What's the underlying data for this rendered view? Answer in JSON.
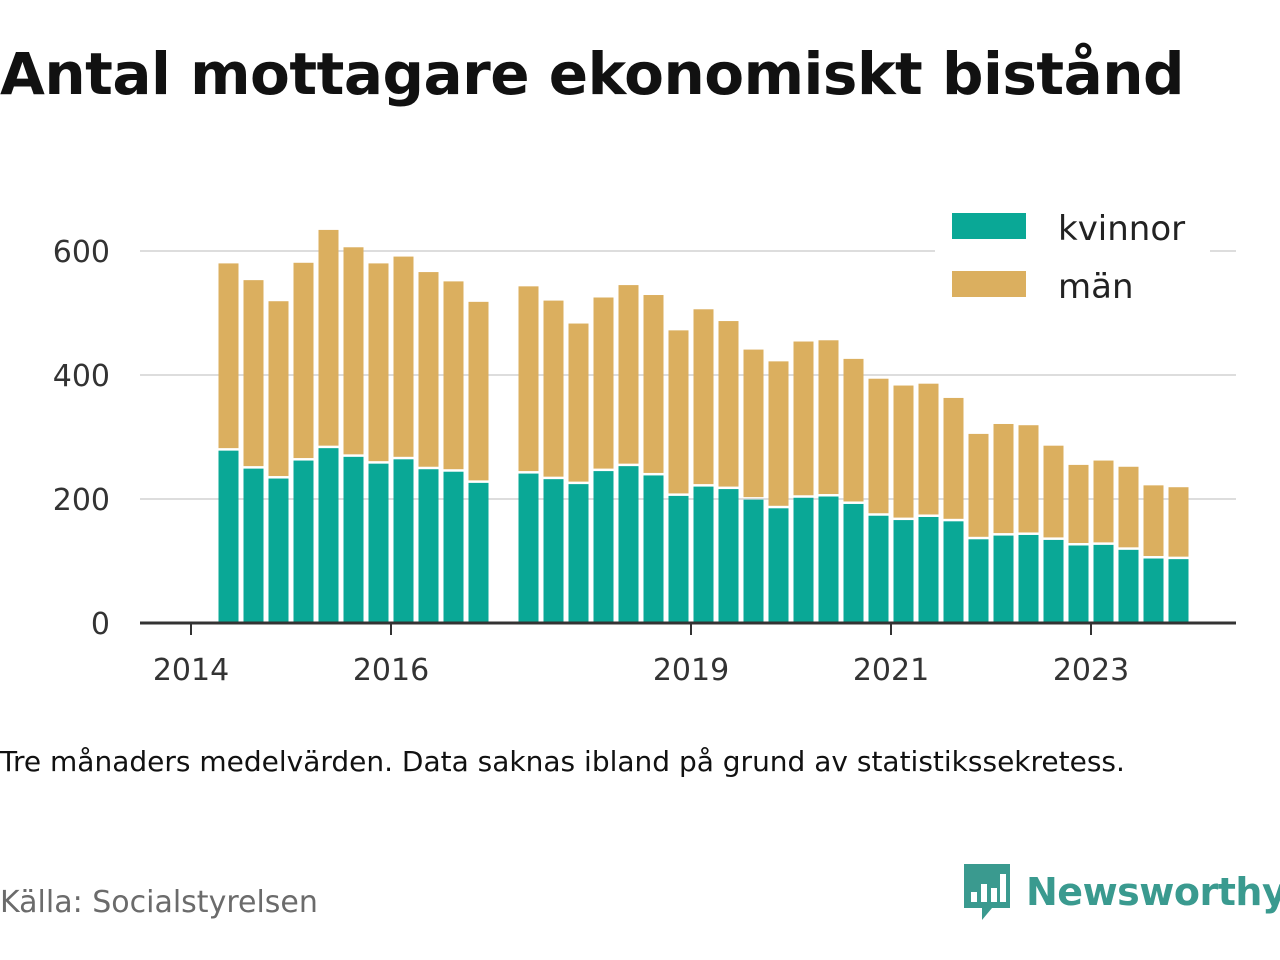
{
  "title": "Antal mottagare ekonomiskt bistånd",
  "note": "Tre månaders medelvärden. Data saknas ibland på grund av statistikssekretess.",
  "source": "Källa: Socialstyrelsen",
  "brand": {
    "name": "Newsworthy",
    "icon": "newsworthy-logo-icon",
    "color": "#3a9a8f"
  },
  "colors": {
    "kvinnor": "#0aa896",
    "man": "#dbaf5f",
    "grid": "#dddddd",
    "axis": "#333333"
  },
  "chart_data": {
    "type": "bar",
    "stacked": true,
    "x_unit": "quarter",
    "ylim": [
      0,
      650
    ],
    "yticks": [
      0,
      200,
      400,
      600
    ],
    "xticks": [
      "2014",
      "2016",
      "2019",
      "2021",
      "2023"
    ],
    "grid": "horizontal",
    "legend_position": "top-right",
    "categories": [
      "2014-Q2",
      "2014-Q3",
      "2014-Q4",
      "2015-Q1",
      "2015-Q2",
      "2015-Q3",
      "2015-Q4",
      "2016-Q1",
      "2016-Q2",
      "2016-Q3",
      "2016-Q4",
      "2017-Q1",
      "2017-Q2",
      "2017-Q3",
      "2017-Q4",
      "2018-Q1",
      "2018-Q2",
      "2018-Q3",
      "2018-Q4",
      "2019-Q1",
      "2019-Q2",
      "2019-Q3",
      "2019-Q4",
      "2020-Q1",
      "2020-Q2",
      "2020-Q3",
      "2020-Q4",
      "2021-Q1",
      "2021-Q2",
      "2021-Q3",
      "2021-Q4",
      "2022-Q1",
      "2022-Q2",
      "2022-Q3",
      "2022-Q4",
      "2023-Q1",
      "2023-Q2",
      "2023-Q3",
      "2023-Q4",
      "2024-Q1"
    ],
    "series": [
      {
        "name": "kvinnor",
        "values": [
          278,
          249,
          233,
          262,
          282,
          268,
          257,
          264,
          248,
          244,
          226,
          null,
          241,
          232,
          224,
          245,
          253,
          238,
          205,
          220,
          216,
          199,
          185,
          202,
          204,
          192,
          173,
          166,
          171,
          164,
          135,
          141,
          142,
          134,
          125,
          126,
          118,
          104,
          103,
          null
        ]
      },
      {
        "name": "män",
        "values": [
          302,
          304,
          286,
          319,
          352,
          338,
          323,
          327,
          318,
          307,
          292,
          null,
          302,
          288,
          259,
          280,
          292,
          291,
          267,
          286,
          271,
          242,
          237,
          252,
          252,
          234,
          221,
          217,
          215,
          199,
          170,
          180,
          177,
          152,
          130,
          136,
          134,
          118,
          116,
          null
        ]
      }
    ]
  }
}
